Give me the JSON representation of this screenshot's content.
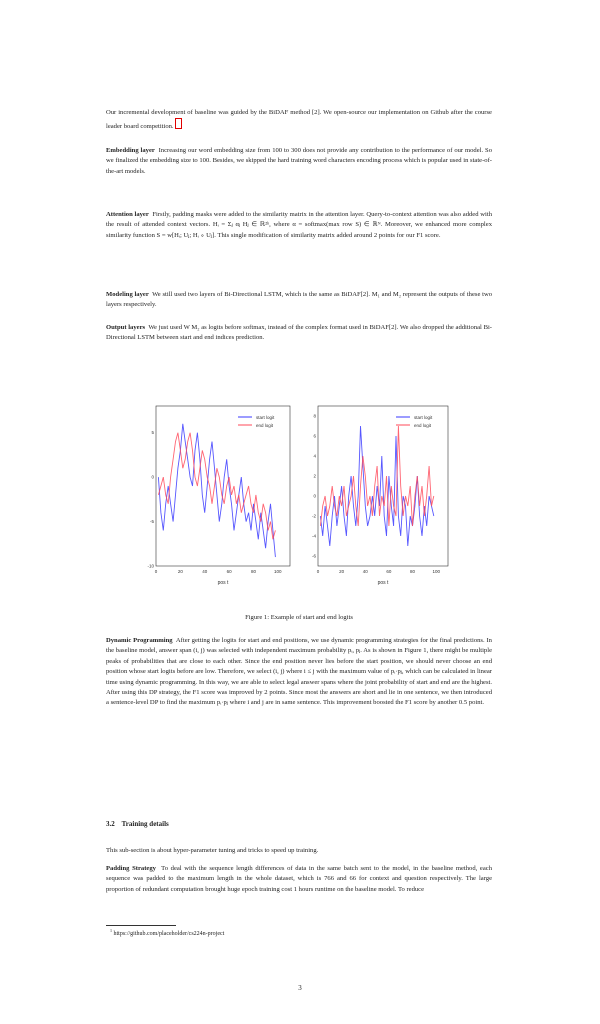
{
  "paragraphs": {
    "intro": "Our incremental development of baseline was guided by the BiDAF method [2]. We open-source our implementation on Github after the course leader board competition.",
    "embedding": {
      "heading": "Embedding layer",
      "text": "Increasing our word embedding size from 100 to 300 does not provide any contribution to the performance of our model. So we finalized the embedding size to 100. Besides, we skipped the hard training word characters encoding process which is popular used in state-of-the-art models."
    },
    "attention": {
      "heading": "Attention layer",
      "text": "Firstly, padding masks were added to the similarity matrix in the attention layer. Query-to-context attention was also added with the result of attended context vectors. Hᵢ = Σⱼ αⱼ Hⱼ ∈ ℝ²ʰ, where α = softmax(max row S) ∈ ℝᴺ. Moreover, we enhanced more complex similarity function S = w[Hᵢ; Uⱼ; Hᵢ ∘ Uⱼ]. This single modification of similarity matrix added around 2 points for our F1 score."
    },
    "modeling": {
      "heading": "Modeling layer",
      "text": "We still used two layers of Bi-Directional LSTM, which is the same as BiDAF[2]. M₁ and M₂ represent the outputs of these two layers respectively."
    },
    "output": {
      "heading": "Output layers",
      "text": "We just used W M₂ as logits before softmax, instead of the complex format used in BiDAF[2]. We also dropped the additional Bi-Directional LSTM between start and end indices prediction."
    },
    "dp": {
      "heading": "Dynamic Programming",
      "text": "After getting the logits for start and end positions, we use dynamic programming strategies for the final predictions. In the baseline model, answer span (i, j) was selected with independent maximum probability pᵢ, pⱼ. As is shown in Figure 1, there might be multiple peaks of probabilities that are close to each other. Since the end position never lies before the start position, we should never choose an end position whose start logits before are low. Therefore, we select (i, j) where i ≤ j with the maximum value of pᵢ·pⱼ, which can be calculated in linear time using dynamic programming. In this way, we are able to select legal answer spans where the joint probability of start and end are the highest. After using this DP strategy, the F1 score was improved by 2 points. Since most the answers are short and lie in one sentence, we then introduced a sentence-level DP to find the maximum pᵢ·pⱼ where i and j are in same sentence. This improvement boosted the F1 score by another 0.5 point."
    },
    "training_intro": "This sub-section is about hyper-parameter tuning and tricks to speed up training.",
    "padding": {
      "heading": "Padding Strategy",
      "text": "To deal with the sequence length differences of data in the same batch sent to the model, in the baseline method, each sequence was padded to the maximum length in the whole dataset, which is 766 and 66 for context and question respectively. The large proportion of redundant computation brought huge epoch training cost 1 hours runtime on the baseline model. To reduce"
    }
  },
  "figure": {
    "caption": "Figure 1: Example of start and end logits",
    "left_legend": [
      "start logit",
      "end logit"
    ],
    "right_legend": [
      "start logit",
      "end logit"
    ],
    "left_xlabel": "pos t",
    "right_xlabel": "pos t",
    "colors": {
      "start": "#3a3aff",
      "end": "#ff4a5a"
    }
  },
  "section": {
    "number": "3.2",
    "title": "Training details"
  },
  "footnote": "https://github.com/placeholder/cs224n-project",
  "page_number": "3",
  "chart_data": [
    {
      "type": "line",
      "xlim": [
        0,
        110
      ],
      "ylim": [
        -10,
        8
      ],
      "x_ticks": [
        0,
        20,
        40,
        60,
        80,
        100
      ],
      "y_ticks": [
        -10,
        -5,
        0,
        5
      ],
      "series": [
        {
          "name": "start logit",
          "values": [
            0,
            -4,
            -6,
            -3,
            -1,
            -3,
            -5,
            -2,
            1,
            3,
            6,
            4,
            2,
            0,
            -1,
            3,
            5,
            2,
            -2,
            -4,
            -1,
            2,
            4,
            1,
            -2,
            -5,
            -3,
            0,
            2,
            -1,
            -3,
            -6,
            -4,
            -2,
            0,
            -3,
            -5,
            -4,
            -6,
            -3,
            -5,
            -7,
            -4,
            -6,
            -8,
            -5,
            -3,
            -6,
            -9
          ]
        },
        {
          "name": "end logit",
          "values": [
            -2,
            -1,
            0,
            -2,
            -3,
            0,
            2,
            4,
            5,
            3,
            1,
            2,
            4,
            5,
            3,
            0,
            -1,
            1,
            3,
            2,
            0,
            -1,
            -3,
            -1,
            1,
            0,
            -2,
            -3,
            -1,
            0,
            -2,
            -1,
            -3,
            -2,
            -4,
            -3,
            -2,
            -1,
            -3,
            -4,
            -2,
            -4,
            -5,
            -3,
            -4,
            -6,
            -5,
            -7,
            -6
          ]
        }
      ]
    },
    {
      "type": "line",
      "xlim": [
        0,
        110
      ],
      "ylim": [
        -7,
        9
      ],
      "x_ticks": [
        0,
        20,
        40,
        60,
        80,
        100
      ],
      "y_ticks": [
        -6,
        -4,
        -2,
        0,
        2,
        4,
        6,
        8
      ],
      "series": [
        {
          "name": "start logit",
          "values": [
            -2,
            -4,
            -1,
            -3,
            -5,
            -2,
            0,
            -3,
            -1,
            1,
            -2,
            -4,
            0,
            2,
            -1,
            -3,
            0,
            7,
            3,
            -1,
            -3,
            -2,
            0,
            -2,
            1,
            -1,
            4,
            -2,
            -4,
            2,
            -1,
            -3,
            6,
            -2,
            -4,
            0,
            -1,
            -5,
            -2,
            -3,
            -1,
            2,
            -2,
            -4,
            -1,
            -3,
            0,
            -1,
            -2
          ]
        },
        {
          "name": "end logit",
          "values": [
            -3,
            -1,
            0,
            -2,
            -1,
            1,
            -1,
            -2,
            0,
            -1,
            1,
            -2,
            -1,
            0,
            2,
            -1,
            -3,
            1,
            4,
            2,
            -1,
            0,
            -2,
            1,
            3,
            -2,
            0,
            -1,
            2,
            -3,
            1,
            -1,
            -2,
            7,
            1,
            -2,
            0,
            -1,
            1,
            -3,
            0,
            2,
            -1,
            1,
            -2,
            0,
            3,
            -1,
            0
          ]
        }
      ]
    }
  ]
}
